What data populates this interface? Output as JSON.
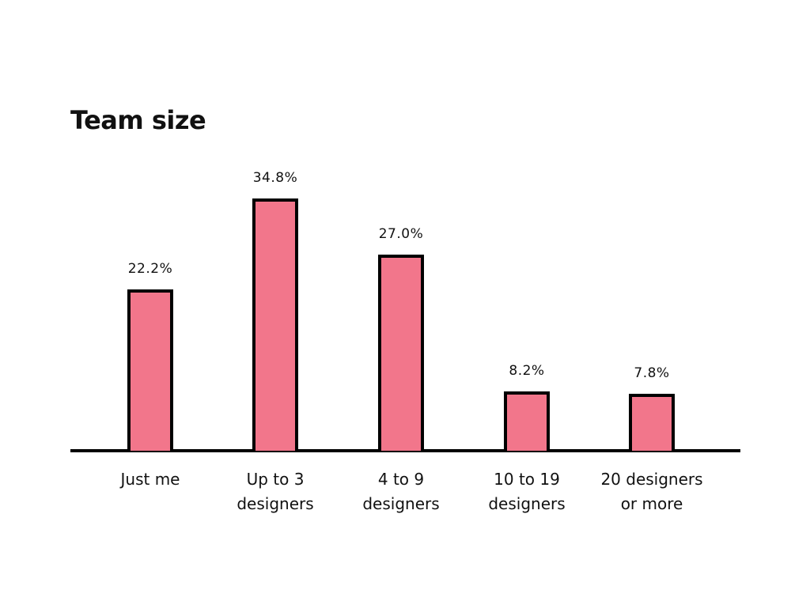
{
  "chart_data": {
    "type": "bar",
    "title": "Team size",
    "xlabel": "",
    "ylabel": "",
    "categories": [
      "Just me",
      "Up to 3 designers",
      "4 to 9 designers",
      "10 to 19 designers",
      "20 designers or more"
    ],
    "category_lines": [
      [
        "Just me"
      ],
      [
        "Up to 3",
        "designers"
      ],
      [
        "4 to 9",
        "designers"
      ],
      [
        "10 to 19",
        "designers"
      ],
      [
        "20 designers",
        "or more"
      ]
    ],
    "values": [
      22.2,
      34.8,
      27.0,
      8.2,
      7.8
    ],
    "value_labels": [
      "22.2%",
      "34.8%",
      "27.0%",
      "8.2%",
      "7.8%"
    ],
    "unit": "%",
    "ylim": [
      0,
      40
    ],
    "grid": false,
    "legend": null,
    "colors": {
      "bar_fill": "#f2768b",
      "bar_stroke": "#000000",
      "axis": "#000000"
    }
  }
}
